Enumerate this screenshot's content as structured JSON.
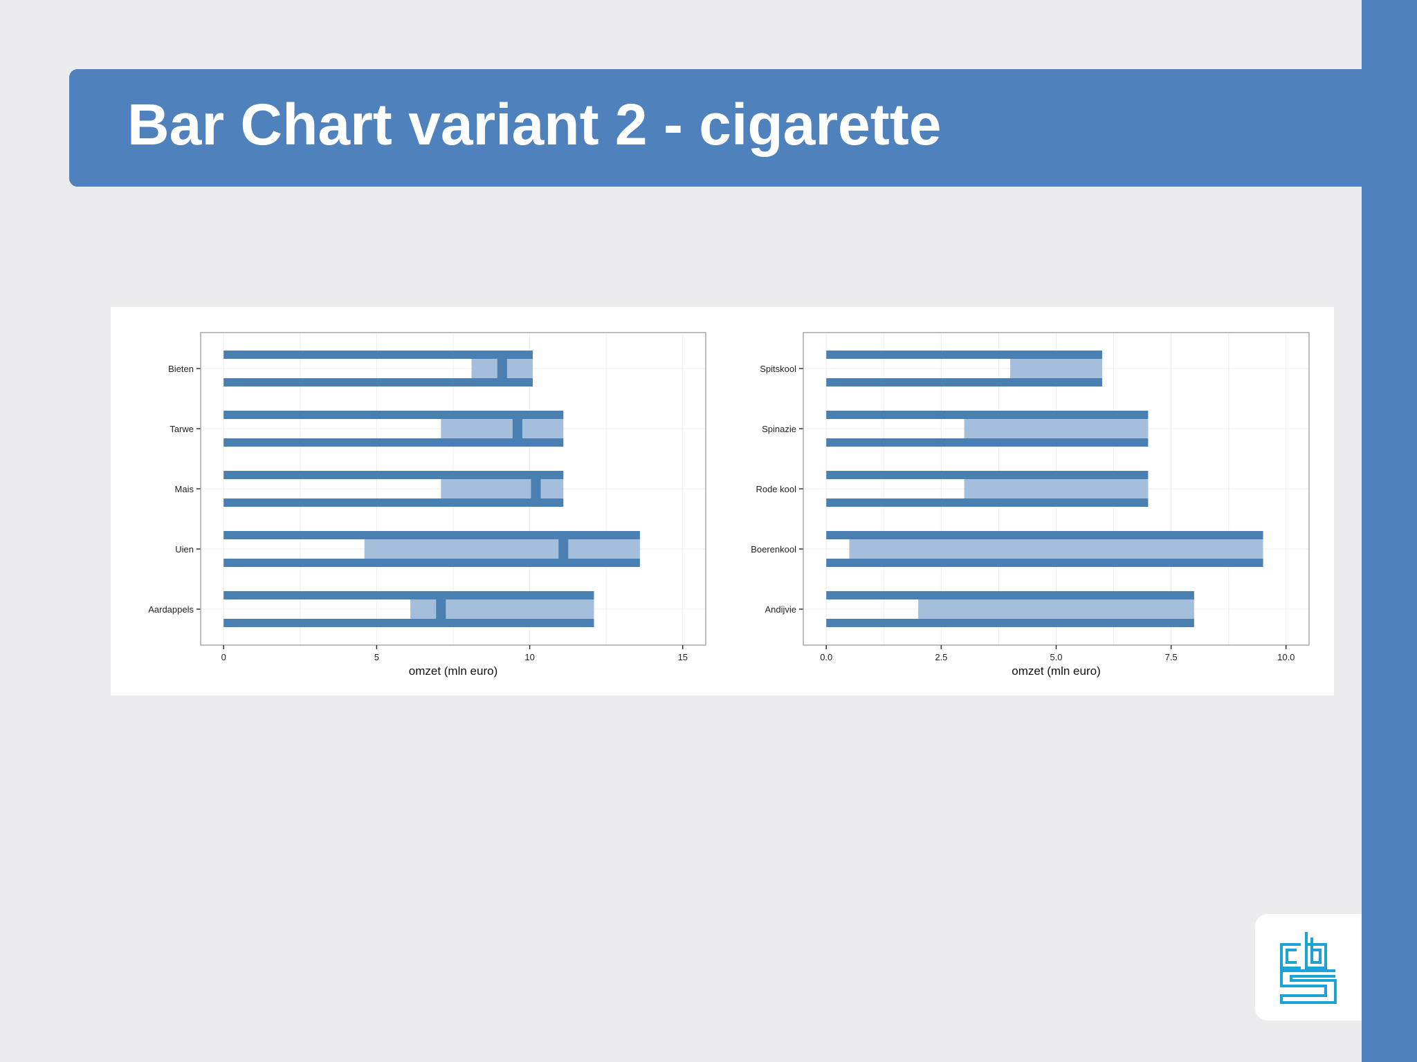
{
  "slide": {
    "title": "Bar Chart variant 2 - cigarette",
    "logo": "cbs-logo",
    "colors": {
      "accent": "#4f81bd",
      "bar_dark": "#4a7fb2",
      "bar_light": "#a4bedb",
      "logo": "#1aa3d4"
    }
  },
  "chart_data": [
    {
      "type": "bar",
      "variant": "cigarette",
      "orientation": "horizontal",
      "categories": [
        "Bieten",
        "Tarwe",
        "Mais",
        "Uien",
        "Aardappels"
      ],
      "series": [
        {
          "role": "total",
          "values": [
            10.1,
            11.1,
            11.1,
            13.6,
            12.1
          ]
        },
        {
          "role": "range_start",
          "values": [
            8.1,
            7.1,
            7.1,
            4.6,
            6.1
          ]
        },
        {
          "role": "marker",
          "values": [
            9.1,
            9.6,
            10.2,
            11.1,
            7.1
          ]
        }
      ],
      "xlabel": "omzet (mln euro)",
      "xlim": [
        -0.75,
        15.75
      ],
      "xticks": [
        0,
        5,
        10,
        15
      ],
      "xtick_labels": [
        "0",
        "5",
        "10",
        "15"
      ],
      "grid": true
    },
    {
      "type": "bar",
      "variant": "cigarette",
      "orientation": "horizontal",
      "categories": [
        "Spitskool",
        "Spinazie",
        "Rode kool",
        "Boerenkool",
        "Andijvie"
      ],
      "series": [
        {
          "role": "total",
          "values": [
            6.0,
            7.0,
            7.0,
            9.5,
            8.0
          ]
        },
        {
          "role": "range_start",
          "values": [
            4.0,
            3.0,
            3.0,
            0.5,
            2.0
          ]
        }
      ],
      "xlabel": "omzet (mln euro)",
      "xlim": [
        -0.5,
        10.5
      ],
      "xticks": [
        0,
        2.5,
        5,
        7.5,
        10
      ],
      "xtick_labels": [
        "0.0",
        "2.5",
        "5.0",
        "7.5",
        "10.0"
      ],
      "grid": true
    }
  ]
}
